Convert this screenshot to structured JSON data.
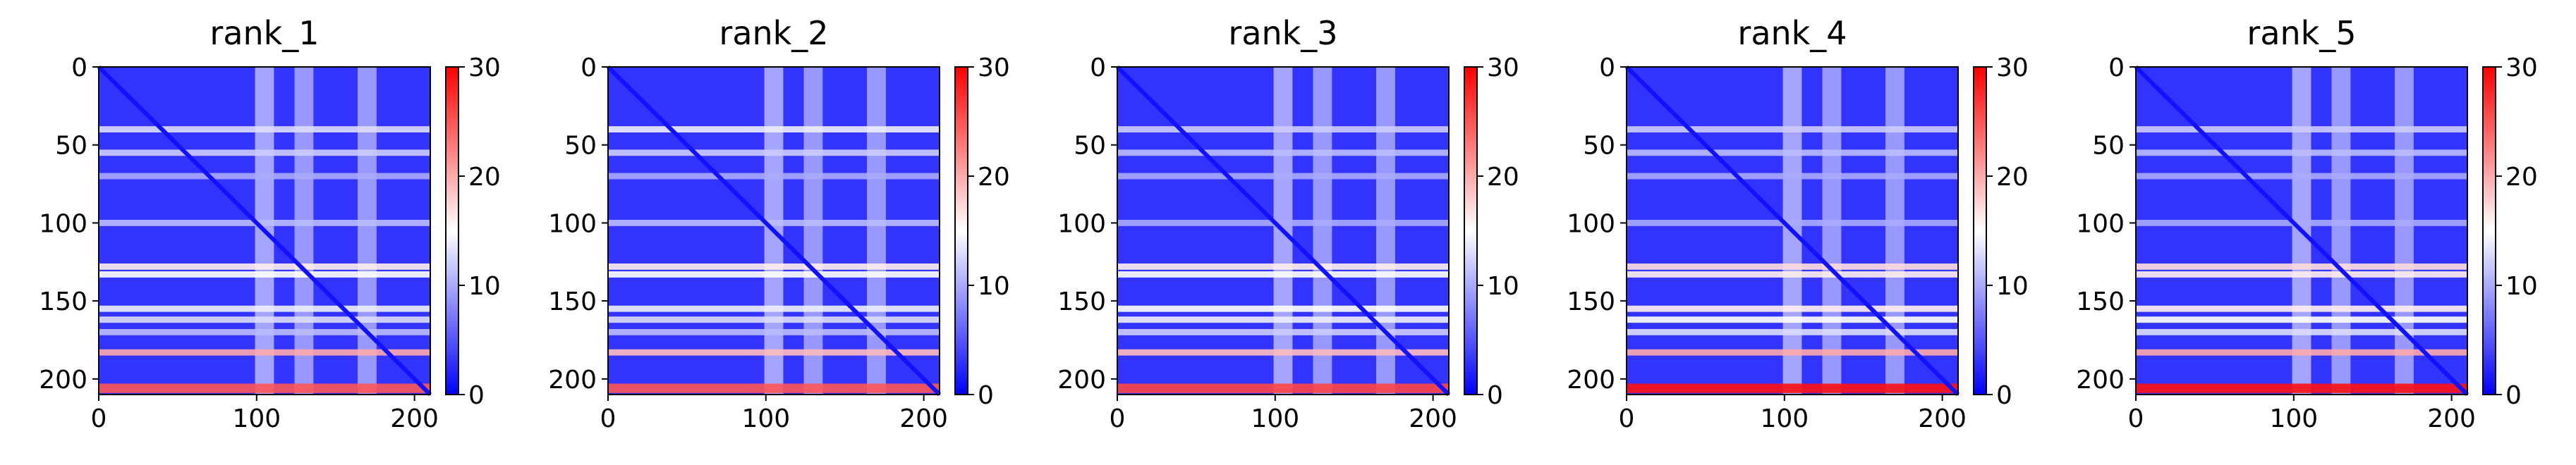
{
  "chart_data": [
    {
      "type": "heatmap",
      "title": "rank_1",
      "matrix_size": 210,
      "xlim": [
        0,
        210
      ],
      "ylim": [
        210,
        0
      ],
      "x_ticks": [
        0,
        100,
        200
      ],
      "y_ticks": [
        0,
        50,
        100,
        150,
        200
      ],
      "colorbar": {
        "min": 0,
        "max": 30,
        "ticks": [
          0,
          10,
          20,
          30
        ],
        "colormap": "bwr",
        "low_color": "#0000ff",
        "mid_color": "#ffffff",
        "high_color": "#ff0000"
      },
      "bright_row_bands": [
        {
          "row": 40,
          "value": 13
        },
        {
          "row": 55,
          "value": 12
        },
        {
          "row": 70,
          "value": 10
        },
        {
          "row": 100,
          "value": 11
        },
        {
          "row": 128,
          "value": 16
        },
        {
          "row": 133,
          "value": 15
        },
        {
          "row": 155,
          "value": 14
        },
        {
          "row": 162,
          "value": 13
        },
        {
          "row": 170,
          "value": 11
        },
        {
          "row": 183,
          "value": 20
        },
        {
          "row": 206,
          "value": 25
        }
      ],
      "bright_column_bands": [
        {
          "col": 105,
          "value": 12
        },
        {
          "col": 130,
          "value": 11
        },
        {
          "col": 170,
          "value": 11
        }
      ],
      "diagonal_value": 1
    },
    {
      "type": "heatmap",
      "title": "rank_2",
      "matrix_size": 210,
      "xlim": [
        0,
        210
      ],
      "ylim": [
        210,
        0
      ],
      "x_ticks": [
        0,
        100,
        200
      ],
      "y_ticks": [
        0,
        50,
        100,
        150,
        200
      ],
      "colorbar": {
        "min": 0,
        "max": 30,
        "ticks": [
          0,
          10,
          20,
          30
        ],
        "colormap": "bwr",
        "low_color": "#0000ff",
        "mid_color": "#ffffff",
        "high_color": "#ff0000"
      },
      "bright_row_bands": [
        {
          "row": 40,
          "value": 14
        },
        {
          "row": 55,
          "value": 12
        },
        {
          "row": 70,
          "value": 10
        },
        {
          "row": 100,
          "value": 11
        },
        {
          "row": 128,
          "value": 16
        },
        {
          "row": 133,
          "value": 15
        },
        {
          "row": 155,
          "value": 14
        },
        {
          "row": 162,
          "value": 13
        },
        {
          "row": 170,
          "value": 11
        },
        {
          "row": 183,
          "value": 19
        },
        {
          "row": 206,
          "value": 25
        }
      ],
      "bright_column_bands": [
        {
          "col": 105,
          "value": 12
        },
        {
          "col": 130,
          "value": 11
        },
        {
          "col": 170,
          "value": 11
        }
      ],
      "diagonal_value": 1
    },
    {
      "type": "heatmap",
      "title": "rank_3",
      "matrix_size": 210,
      "xlim": [
        0,
        210
      ],
      "ylim": [
        210,
        0
      ],
      "x_ticks": [
        0,
        100,
        200
      ],
      "y_ticks": [
        0,
        50,
        100,
        150,
        200
      ],
      "colorbar": {
        "min": 0,
        "max": 30,
        "ticks": [
          0,
          10,
          20,
          30
        ],
        "colormap": "bwr",
        "low_color": "#0000ff",
        "mid_color": "#ffffff",
        "high_color": "#ff0000"
      },
      "bright_row_bands": [
        {
          "row": 40,
          "value": 12
        },
        {
          "row": 55,
          "value": 11
        },
        {
          "row": 70,
          "value": 10
        },
        {
          "row": 100,
          "value": 10
        },
        {
          "row": 128,
          "value": 16
        },
        {
          "row": 133,
          "value": 15
        },
        {
          "row": 155,
          "value": 15
        },
        {
          "row": 162,
          "value": 14
        },
        {
          "row": 170,
          "value": 12
        },
        {
          "row": 183,
          "value": 19
        },
        {
          "row": 206,
          "value": 26
        }
      ],
      "bright_column_bands": [
        {
          "col": 105,
          "value": 12
        },
        {
          "col": 130,
          "value": 11
        },
        {
          "col": 170,
          "value": 11
        }
      ],
      "diagonal_value": 1
    },
    {
      "type": "heatmap",
      "title": "rank_4",
      "matrix_size": 210,
      "xlim": [
        0,
        210
      ],
      "ylim": [
        210,
        0
      ],
      "x_ticks": [
        0,
        100,
        200
      ],
      "y_ticks": [
        0,
        50,
        100,
        150,
        200
      ],
      "colorbar": {
        "min": 0,
        "max": 30,
        "ticks": [
          0,
          10,
          20,
          30
        ],
        "colormap": "bwr",
        "low_color": "#0000ff",
        "mid_color": "#ffffff",
        "high_color": "#ff0000"
      },
      "bright_row_bands": [
        {
          "row": 40,
          "value": 12
        },
        {
          "row": 55,
          "value": 11
        },
        {
          "row": 70,
          "value": 10
        },
        {
          "row": 100,
          "value": 10
        },
        {
          "row": 128,
          "value": 17
        },
        {
          "row": 133,
          "value": 16
        },
        {
          "row": 155,
          "value": 16
        },
        {
          "row": 162,
          "value": 15
        },
        {
          "row": 170,
          "value": 13
        },
        {
          "row": 183,
          "value": 20
        },
        {
          "row": 206,
          "value": 29
        }
      ],
      "bright_column_bands": [
        {
          "col": 105,
          "value": 12
        },
        {
          "col": 130,
          "value": 11
        },
        {
          "col": 170,
          "value": 11
        }
      ],
      "diagonal_value": 1
    },
    {
      "type": "heatmap",
      "title": "rank_5",
      "matrix_size": 210,
      "xlim": [
        0,
        210
      ],
      "ylim": [
        210,
        0
      ],
      "x_ticks": [
        0,
        100,
        200
      ],
      "y_ticks": [
        0,
        50,
        100,
        150,
        200
      ],
      "colorbar": {
        "min": 0,
        "max": 30,
        "ticks": [
          0,
          10,
          20,
          30
        ],
        "colormap": "bwr",
        "low_color": "#0000ff",
        "mid_color": "#ffffff",
        "high_color": "#ff0000"
      },
      "bright_row_bands": [
        {
          "row": 40,
          "value": 12
        },
        {
          "row": 55,
          "value": 11
        },
        {
          "row": 70,
          "value": 10
        },
        {
          "row": 100,
          "value": 10
        },
        {
          "row": 128,
          "value": 17
        },
        {
          "row": 133,
          "value": 16
        },
        {
          "row": 155,
          "value": 16
        },
        {
          "row": 162,
          "value": 15
        },
        {
          "row": 170,
          "value": 13
        },
        {
          "row": 183,
          "value": 20
        },
        {
          "row": 206,
          "value": 29
        }
      ],
      "bright_column_bands": [
        {
          "col": 105,
          "value": 12
        },
        {
          "col": 130,
          "value": 11
        },
        {
          "col": 170,
          "value": 11
        }
      ],
      "diagonal_value": 1
    }
  ]
}
